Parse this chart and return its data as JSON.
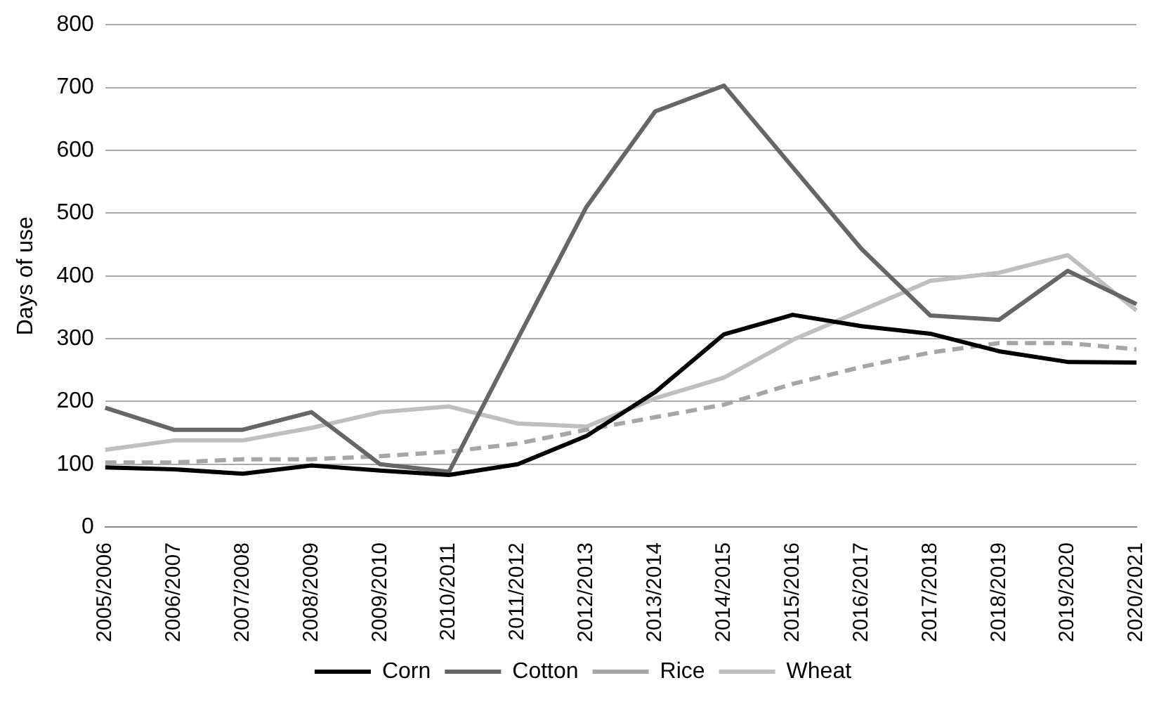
{
  "chart_data": {
    "type": "line",
    "ylabel": "Days of use",
    "categories": [
      "2005/2006",
      "2006/2007",
      "2007/2008",
      "2008/2009",
      "2009/2010",
      "2010/2011",
      "2011/2012",
      "2012/2013",
      "2013/2014",
      "2014/2015",
      "2015/2016",
      "2016/2017",
      "2017/2018",
      "2018/2019",
      "2019/2020",
      "2020/2021"
    ],
    "series": [
      {
        "name": "Corn",
        "color": "#000000",
        "values": [
          95,
          92,
          85,
          98,
          90,
          83,
          100,
          145,
          215,
          307,
          338,
          320,
          308,
          280,
          263,
          262
        ]
      },
      {
        "name": "Cotton",
        "color": "#666666",
        "values": [
          190,
          155,
          155,
          183,
          100,
          88,
          300,
          510,
          662,
          703,
          573,
          443,
          337,
          330,
          408,
          355
        ]
      },
      {
        "name": "Rice",
        "color": "#a6a6a6",
        "line_style": "dashed",
        "values": [
          103,
          103,
          108,
          108,
          113,
          120,
          133,
          155,
          175,
          195,
          228,
          255,
          278,
          293,
          293,
          283
        ]
      },
      {
        "name": "Wheat",
        "color": "#bfbfbf",
        "values": [
          123,
          138,
          138,
          158,
          183,
          192,
          165,
          160,
          205,
          238,
          298,
          345,
          392,
          405,
          433,
          345
        ]
      }
    ],
    "ylim": [
      0,
      800
    ],
    "yticks": [
      0,
      100,
      200,
      300,
      400,
      500,
      600,
      700,
      800
    ],
    "grid": "y",
    "legend": "bottom",
    "marker": "none",
    "line_style": "solid"
  }
}
